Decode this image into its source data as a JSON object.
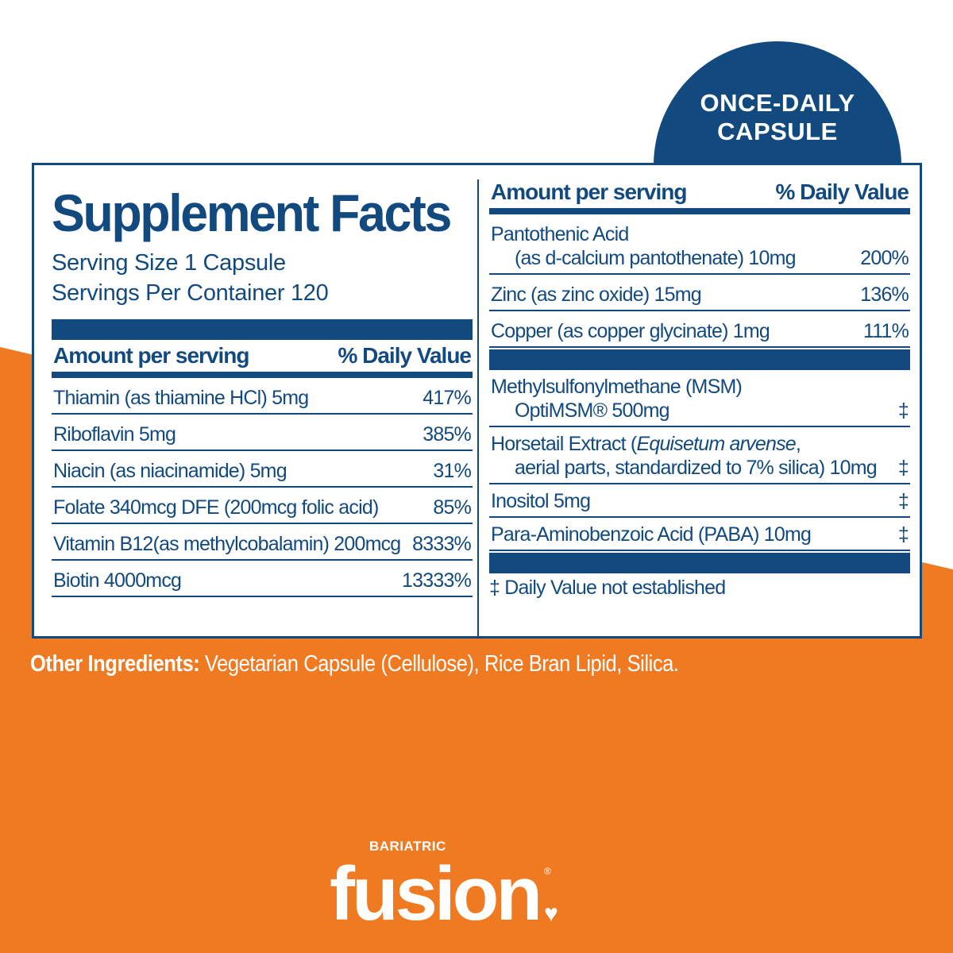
{
  "colors": {
    "brand_blue": "#124a80",
    "brand_orange": "#f07a22"
  },
  "badge": {
    "line1": "ONCE-DAILY",
    "line2": "CAPSULE"
  },
  "facts": {
    "title": "Supplement Facts",
    "serving_size": "Serving Size 1 Capsule",
    "servings_per_container": "Servings Per Container 120",
    "amount_header": "Amount per serving",
    "dv_header": "% Daily Value",
    "left_rows": [
      {
        "name": "Thiamin (as thiamine HCl)  5mg",
        "dv": "417%"
      },
      {
        "name": "Riboflavin 5mg",
        "dv": "385%"
      },
      {
        "name": "Niacin (as niacinamide) 5mg",
        "dv": "31%"
      },
      {
        "name": "Folate 340mcg DFE (200mcg folic acid)",
        "dv": "85%"
      },
      {
        "name": "Vitamin B12(as methylcobalamin) 200mcg",
        "dv": "8333%"
      },
      {
        "name": "Biotin 4000mcg",
        "dv": "13333%"
      }
    ],
    "right_rows": [
      {
        "name": "Pantothenic Acid",
        "sub": "(as d-calcium pantothenate) 10mg",
        "dv": "200%"
      },
      {
        "name": "Zinc (as zinc oxide) 15mg",
        "dv": "136%"
      },
      {
        "name": "Copper (as copper glycinate) 1mg",
        "dv": "111%"
      }
    ],
    "right_rows2": [
      {
        "name": "Methylsulfonylmethane (MSM)",
        "sub": "OptiMSM® 500mg",
        "dv": "‡"
      },
      {
        "name": "Horsetail Extract (",
        "italic": "Equisetum arvense",
        "name_end": ",",
        "sub": "aerial parts, standardized to 7% silica) 10mg",
        "dv": "‡"
      },
      {
        "name": "Inositol 5mg",
        "dv": "‡"
      },
      {
        "name": "Para-Aminobenzoic Acid (PABA) 10mg",
        "dv": "‡"
      }
    ],
    "footnote": "‡ Daily Value not established"
  },
  "other_ingredients": {
    "label": "Other Ingredients:",
    "value": " Vegetarian Capsule (Cellulose), Rice Bran Lipid, Silica."
  },
  "logo": {
    "small": "BARIATRIC",
    "big": "fusion",
    "mark": "®"
  }
}
